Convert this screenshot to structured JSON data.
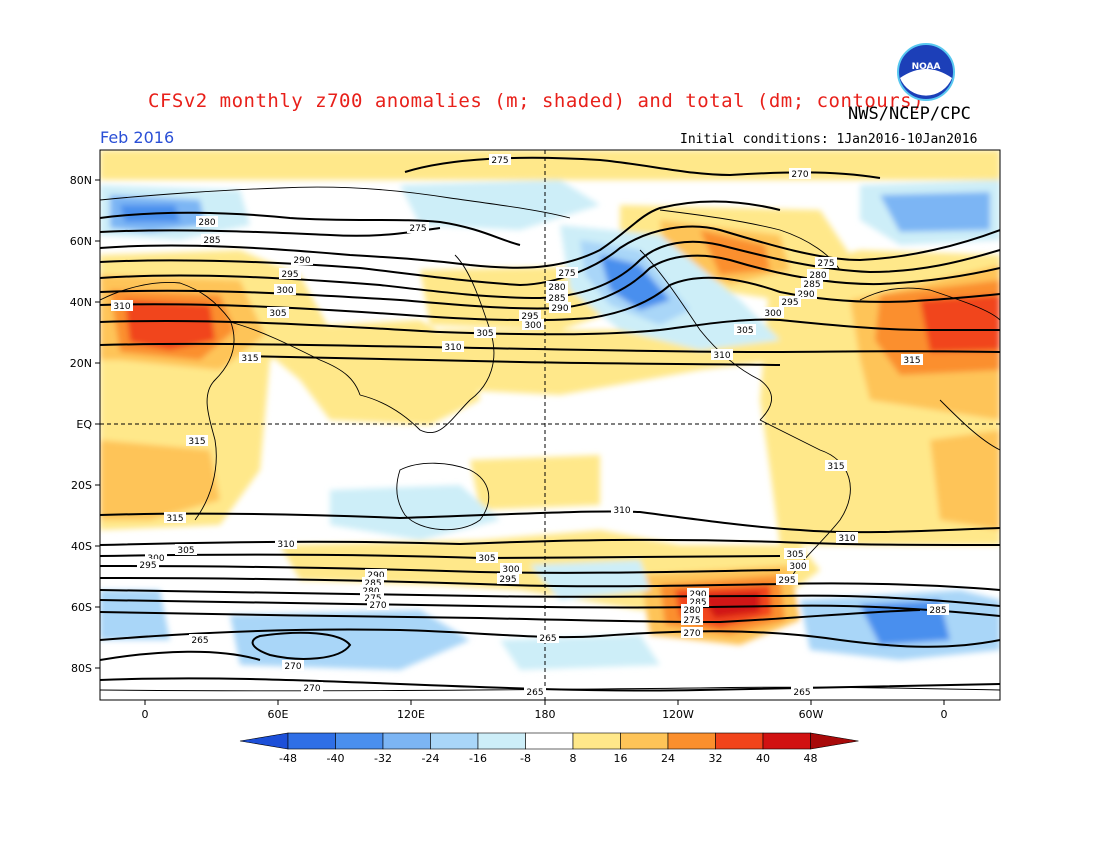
{
  "header": {
    "title": "CFSv2 monthly z700 anomalies (m; shaded) and total (dm; contours)",
    "agency": "NWS/NCEP/CPC",
    "period": "Feb 2016",
    "initial_conditions": "Initial conditions: 1Jan2016-10Jan2016",
    "logo_text": "NOAA"
  },
  "map": {
    "lat_labels": [
      "80N",
      "60N",
      "40N",
      "20N",
      "EQ",
      "20S",
      "40S",
      "60S",
      "80S"
    ],
    "lon_labels": [
      "0",
      "60E",
      "120E",
      "180",
      "120W",
      "60W",
      "0"
    ]
  },
  "colorbar": {
    "levels": [
      "-48",
      "-40",
      "-32",
      "-24",
      "-16",
      "-8",
      "8",
      "16",
      "24",
      "32",
      "40",
      "48"
    ],
    "colors": [
      "#1c4fd8",
      "#2f6fe6",
      "#4a8fee",
      "#7cb5f4",
      "#a9d6f8",
      "#cdeef8",
      "#ffffff",
      "#ffe88a",
      "#fec458",
      "#fb8f2d",
      "#f1441b",
      "#d11212",
      "#a80a0a"
    ]
  },
  "contour_labels": [
    "275",
    "270",
    "280",
    "285",
    "290",
    "295",
    "300",
    "305",
    "310",
    "315",
    "275",
    "305",
    "310",
    "275",
    "280",
    "285",
    "290",
    "295",
    "300",
    "305",
    "310",
    "270",
    "275",
    "280",
    "285",
    "290",
    "295",
    "300",
    "305",
    "310",
    "315",
    "315",
    "315",
    "315",
    "310",
    "310",
    "310",
    "305",
    "300",
    "295",
    "290",
    "285",
    "280",
    "275",
    "270",
    "265",
    "305",
    "300",
    "295",
    "290",
    "285",
    "280",
    "275",
    "270",
    "265",
    "270",
    "270",
    "265",
    "265",
    "285",
    "295",
    "300",
    "305"
  ]
}
